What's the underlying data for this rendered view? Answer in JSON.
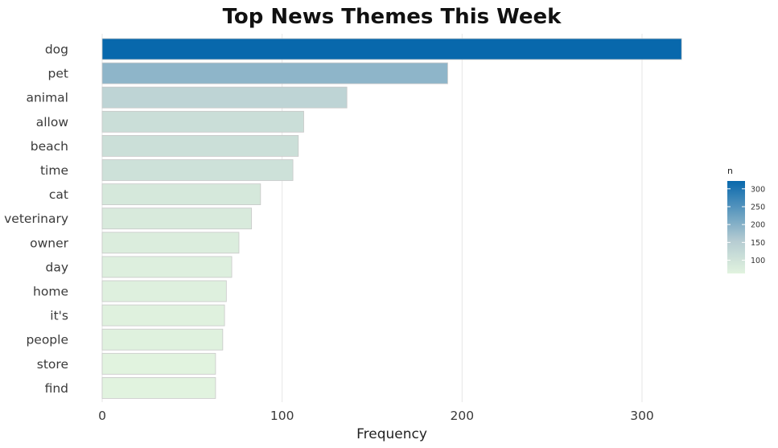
{
  "chart_data": {
    "type": "bar",
    "orientation": "horizontal",
    "title": "Top News Themes This Week",
    "xlabel": "Frequency",
    "ylabel": "",
    "categories": [
      "dog",
      "pet",
      "animal",
      "allow",
      "beach",
      "time",
      "cat",
      "veterinary",
      "owner",
      "day",
      "home",
      "it's",
      "people",
      "store",
      "find"
    ],
    "values": [
      322,
      192,
      136,
      112,
      109,
      106,
      88,
      83,
      76,
      72,
      69,
      68,
      67,
      63,
      63
    ],
    "xlim": [
      0,
      345
    ],
    "xticks": [
      0,
      100,
      200,
      300
    ],
    "xtick_labels": [
      "0",
      "100",
      "200",
      "300"
    ],
    "grid": "vertical major",
    "legend": {
      "title": "n",
      "position": "right",
      "type": "colorbar",
      "range": [
        63,
        322
      ],
      "ticks": [
        100,
        150,
        200,
        250,
        300
      ],
      "tick_labels": [
        "100",
        "150",
        "200",
        "250",
        "300"
      ],
      "color_low": "#e1f3df",
      "color_mid": "#b6ccd2",
      "color_high": "#0868ac"
    }
  }
}
